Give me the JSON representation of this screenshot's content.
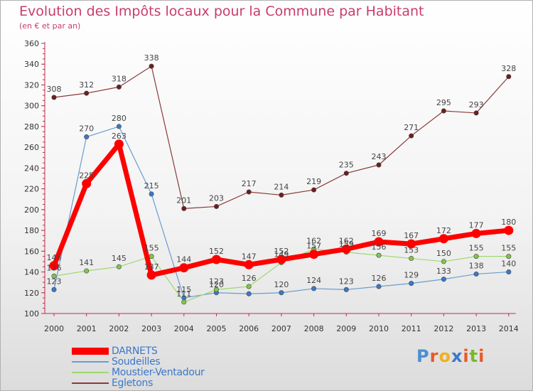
{
  "header": {
    "title": "Evolution des Impôts locaux pour la Commune par Habitant",
    "subtitle": "(en € et par an)"
  },
  "logo": {
    "letters": [
      "P",
      "r",
      "o",
      "x",
      "i",
      "t",
      "i"
    ],
    "colors": [
      "#4a90d0",
      "#e85a28",
      "#f0b020",
      "#3c78c8",
      "#e85a28",
      "#7ab828",
      "#e85a28"
    ]
  },
  "chart_data": {
    "type": "line",
    "title": "Evolution des Impôts locaux pour la Commune par Habitant",
    "subtitle": "(en € et par an)",
    "xlabel": "",
    "ylabel": "",
    "categories": [
      "2000",
      "2001",
      "2002",
      "2003",
      "2004",
      "2005",
      "2006",
      "2007",
      "2008",
      "2009",
      "2010",
      "2011",
      "2012",
      "2013",
      "2014"
    ],
    "ylim": [
      100,
      360
    ],
    "yticks": [
      100,
      120,
      140,
      160,
      180,
      200,
      220,
      240,
      260,
      280,
      300,
      320,
      340,
      360
    ],
    "grid": false,
    "legend_position": "bottom-left",
    "series": [
      {
        "name": "Egletons",
        "color": "#8b3a3a",
        "marker_color": "#6e1e1e",
        "width": 1.2,
        "values": [
          308,
          312,
          318,
          338,
          201,
          203,
          217,
          214,
          219,
          235,
          243,
          271,
          295,
          293,
          328
        ],
        "labels": [
          "308",
          "312",
          "318",
          "338",
          "201",
          "203",
          "217",
          "214",
          "219",
          "235",
          "243",
          "271",
          "295",
          "293",
          "328"
        ]
      },
      {
        "name": "Soudeilles",
        "color": "#6a9cd0",
        "marker_color": "#3c78c8",
        "width": 1.2,
        "values": [
          123,
          270,
          280,
          215,
          115,
          120,
          119,
          120,
          124,
          123,
          126,
          129,
          133,
          138,
          140
        ],
        "labels": [
          "123",
          "270",
          "280",
          "215",
          "115",
          "120",
          "",
          "120",
          "124",
          "123",
          "126",
          "129",
          "133",
          "138",
          "140"
        ]
      },
      {
        "name": "Moustier-Ventadour",
        "color": "#a0d870",
        "marker_color": "#80c848",
        "width": 1.2,
        "values": [
          136,
          141,
          145,
          155,
          111,
          123,
          126,
          149,
          162,
          159,
          156,
          153,
          150,
          155,
          155
        ],
        "labels": [
          "136",
          "141",
          "145",
          "155",
          "111",
          "123",
          "126",
          "149",
          "162",
          "159",
          "156",
          "153",
          "150",
          "155",
          "155"
        ]
      },
      {
        "name": "DARNETS",
        "color": "#ff0000",
        "marker_color": "#ff0000",
        "width": 7,
        "values": [
          146,
          225,
          263,
          137,
          144,
          152,
          147,
          152,
          157,
          162,
          169,
          167,
          172,
          177,
          180
        ],
        "labels": [
          "146",
          "225",
          "263",
          "137",
          "144",
          "152",
          "147",
          "152",
          "157",
          "162",
          "169",
          "167",
          "172",
          "177",
          "180"
        ]
      }
    ],
    "legend": [
      "DARNETS",
      "Soudeilles",
      "Moustier-Ventadour",
      "Egletons"
    ]
  }
}
